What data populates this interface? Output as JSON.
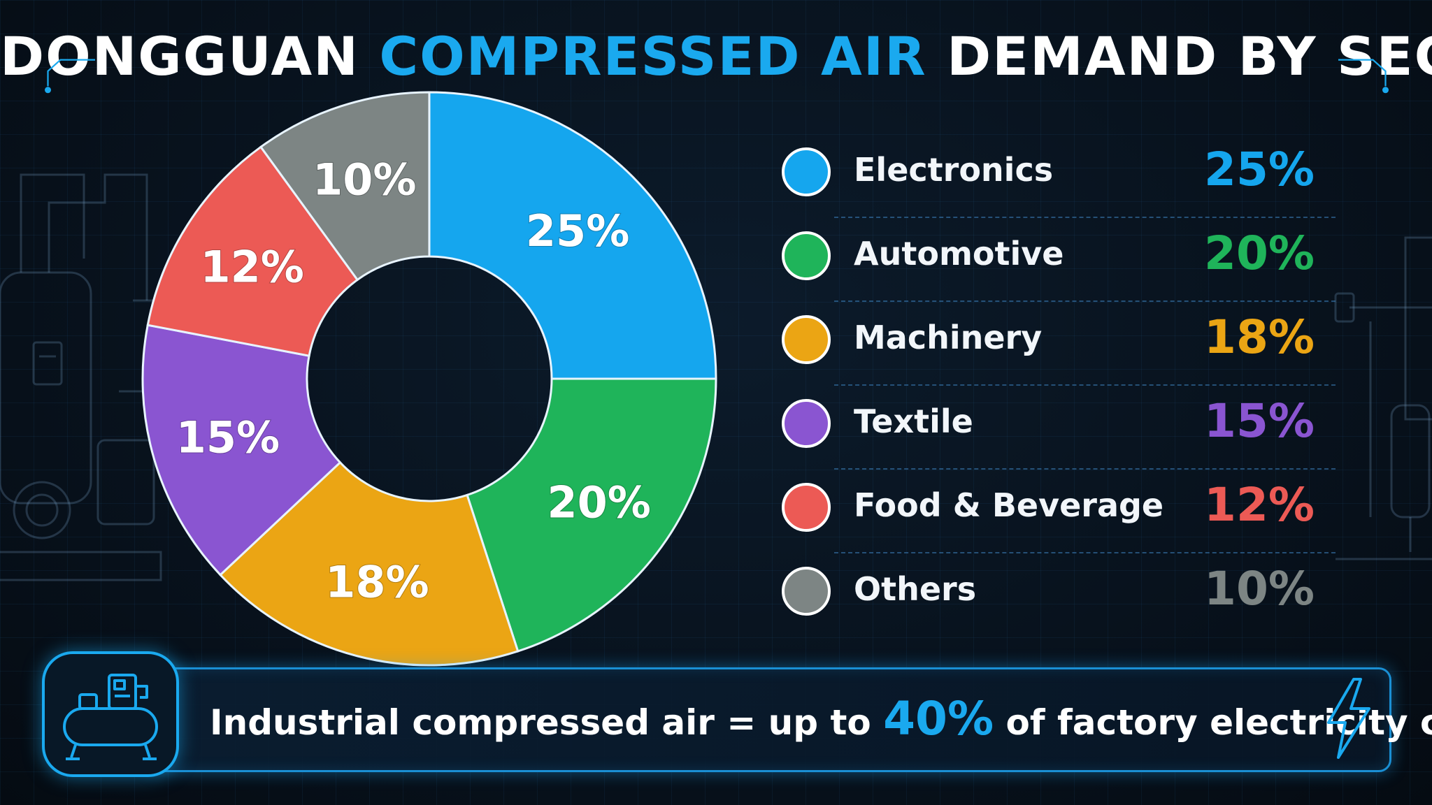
{
  "title": {
    "part1": "DONGGUAN ",
    "part2": "COMPRESSED AIR",
    "part3": " DEMAND BY SECTOR"
  },
  "colors": {
    "accent": "#1aa9ef",
    "background": "#07101a"
  },
  "chart_data": {
    "type": "pie",
    "donut": true,
    "title": "DONGGUAN COMPRESSED AIR DEMAND BY SECTOR",
    "unit": "%",
    "categories": [
      "Electronics",
      "Automotive",
      "Machinery",
      "Textile",
      "Food & Beverage",
      "Others"
    ],
    "values": [
      25,
      20,
      18,
      15,
      12,
      10
    ],
    "labels": [
      "25%",
      "20%",
      "18%",
      "15%",
      "12%",
      "10%"
    ],
    "colors": [
      "#15a6ee",
      "#1fb45a",
      "#eba514",
      "#8a55d1",
      "#ec5a55",
      "#7d8584"
    ],
    "legend_placement": "right"
  },
  "banner": {
    "text_before": "Industrial compressed air = up to ",
    "highlight": "40%",
    "text_after": " of factory electricity cost.",
    "left_icon": "air-compressor-icon",
    "right_icon": "lightning-bolt-icon"
  }
}
